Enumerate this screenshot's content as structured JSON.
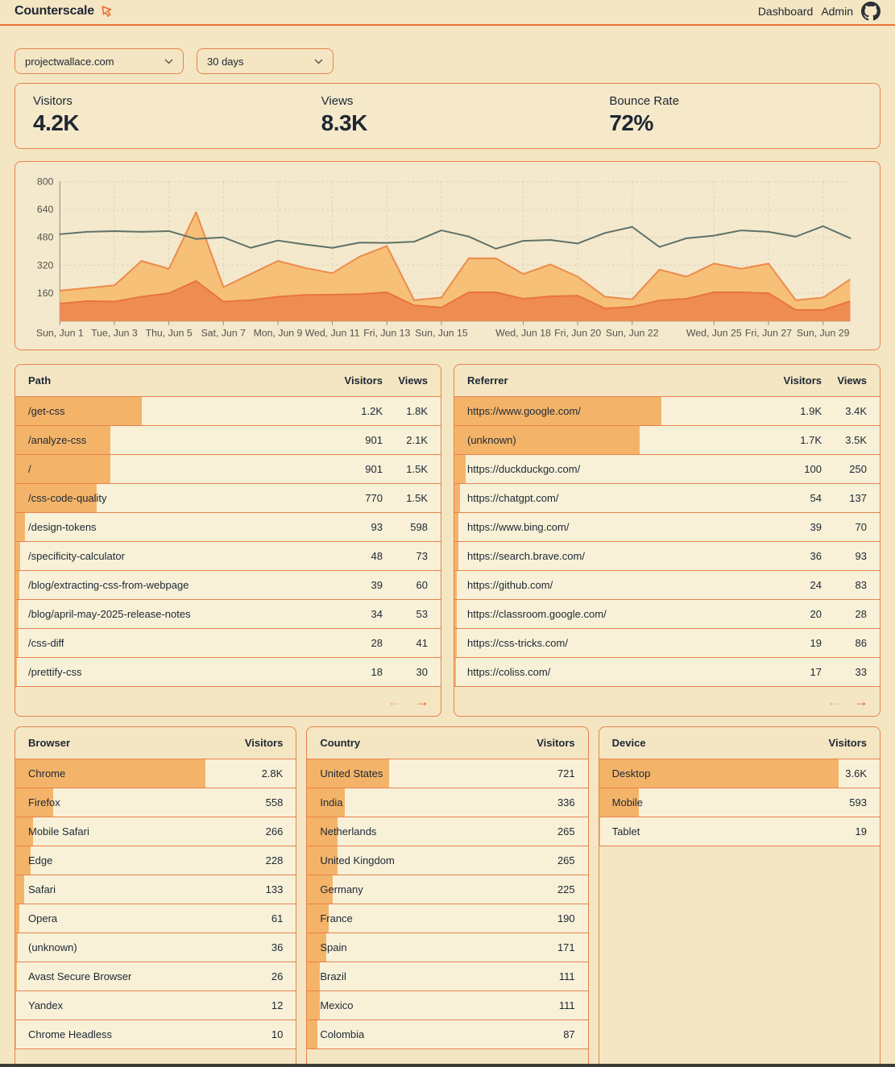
{
  "header": {
    "brand": "Counterscale",
    "nav": [
      "Dashboard",
      "Admin"
    ]
  },
  "filters": {
    "site": "projectwallace.com",
    "range": "30 days"
  },
  "stats": [
    {
      "label": "Visitors",
      "value": "4.2K"
    },
    {
      "label": "Views",
      "value": "8.3K"
    },
    {
      "label": "Bounce Rate",
      "value": "72%"
    }
  ],
  "chart_data": {
    "type": "area",
    "title": "",
    "legend": "none",
    "grid": true,
    "ylim": [
      0,
      800
    ],
    "yticks": [
      160,
      320,
      480,
      640,
      800
    ],
    "x": [
      "Jun 1",
      "Jun 2",
      "Jun 3",
      "Jun 4",
      "Jun 5",
      "Jun 6",
      "Jun 7",
      "Jun 8",
      "Jun 9",
      "Jun 10",
      "Jun 11",
      "Jun 12",
      "Jun 13",
      "Jun 14",
      "Jun 15",
      "Jun 16",
      "Jun 17",
      "Jun 18",
      "Jun 19",
      "Jun 20",
      "Jun 21",
      "Jun 22",
      "Jun 23",
      "Jun 24",
      "Jun 25",
      "Jun 26",
      "Jun 27",
      "Jun 28",
      "Jun 29",
      "Jun 30"
    ],
    "x_ticks": [
      {
        "i": 0,
        "label": "Sun, Jun 1"
      },
      {
        "i": 2,
        "label": "Tue, Jun 3"
      },
      {
        "i": 4,
        "label": "Thu, Jun 5"
      },
      {
        "i": 6,
        "label": "Sat, Jun 7"
      },
      {
        "i": 8,
        "label": "Mon, Jun 9"
      },
      {
        "i": 10,
        "label": "Wed, Jun 11"
      },
      {
        "i": 12,
        "label": "Fri, Jun 13"
      },
      {
        "i": 14,
        "label": "Sun, Jun 15"
      },
      {
        "i": 17,
        "label": "Wed, Jun 18"
      },
      {
        "i": 19,
        "label": "Fri, Jun 20"
      },
      {
        "i": 21,
        "label": "Sun, Jun 22"
      },
      {
        "i": 24,
        "label": "Wed, Jun 25"
      },
      {
        "i": 26,
        "label": "Fri, Jun 27"
      },
      {
        "i": 28,
        "label": "Sun, Jun 29"
      }
    ],
    "series": [
      {
        "name": "views",
        "type": "area",
        "fill": "#f6c078",
        "stroke": "#ed8a4a",
        "values": [
          175,
          190,
          205,
          345,
          300,
          625,
          195,
          270,
          345,
          305,
          275,
          370,
          430,
          120,
          135,
          360,
          360,
          270,
          325,
          255,
          140,
          125,
          295,
          255,
          330,
          300,
          330,
          120,
          135,
          240
        ]
      },
      {
        "name": "visitors",
        "type": "area",
        "fill": "#ee8c53",
        "stroke": "#e8753a",
        "values": [
          100,
          115,
          112,
          140,
          160,
          230,
          112,
          120,
          140,
          150,
          152,
          155,
          165,
          90,
          78,
          165,
          165,
          128,
          142,
          146,
          73,
          82,
          119,
          128,
          165,
          165,
          160,
          64,
          64,
          114
        ]
      },
      {
        "name": "trend",
        "type": "line",
        "stroke": "#5e7168",
        "values": [
          498,
          512,
          516,
          512,
          516,
          471,
          480,
          420,
          462,
          439,
          420,
          450,
          448,
          455,
          520,
          485,
          415,
          460,
          465,
          445,
          505,
          540,
          425,
          475,
          490,
          520,
          512,
          484,
          544,
          475
        ]
      }
    ]
  },
  "tables": {
    "path": {
      "title": "Path",
      "columns": [
        "Visitors",
        "Views"
      ],
      "pager": {
        "prev_enabled": false,
        "next_enabled": true
      },
      "rows": [
        {
          "label": "/get-css",
          "visitors": "1.2K",
          "views": "1.8K",
          "visitors_n": 1200
        },
        {
          "label": "/analyze-css",
          "visitors": "901",
          "views": "2.1K",
          "visitors_n": 901
        },
        {
          "label": "/",
          "visitors": "901",
          "views": "1.5K",
          "visitors_n": 901
        },
        {
          "label": "/css-code-quality",
          "visitors": "770",
          "views": "1.5K",
          "visitors_n": 770
        },
        {
          "label": "/design-tokens",
          "visitors": "93",
          "views": "598",
          "visitors_n": 93
        },
        {
          "label": "/specificity-calculator",
          "visitors": "48",
          "views": "73",
          "visitors_n": 48
        },
        {
          "label": "/blog/extracting-css-from-webpage",
          "visitors": "39",
          "views": "60",
          "visitors_n": 39
        },
        {
          "label": "/blog/april-may-2025-release-notes",
          "visitors": "34",
          "views": "53",
          "visitors_n": 34
        },
        {
          "label": "/css-diff",
          "visitors": "28",
          "views": "41",
          "visitors_n": 28
        },
        {
          "label": "/prettify-css",
          "visitors": "18",
          "views": "30",
          "visitors_n": 18
        }
      ]
    },
    "referrer": {
      "title": "Referrer",
      "columns": [
        "Visitors",
        "Views"
      ],
      "pager": {
        "prev_enabled": false,
        "next_enabled": true
      },
      "rows": [
        {
          "label": "https://www.google.com/",
          "visitors": "1.9K",
          "views": "3.4K",
          "visitors_n": 1900
        },
        {
          "label": "(unknown)",
          "visitors": "1.7K",
          "views": "3.5K",
          "visitors_n": 1700
        },
        {
          "label": "https://duckduckgo.com/",
          "visitors": "100",
          "views": "250",
          "visitors_n": 100
        },
        {
          "label": "https://chatgpt.com/",
          "visitors": "54",
          "views": "137",
          "visitors_n": 54
        },
        {
          "label": "https://www.bing.com/",
          "visitors": "39",
          "views": "70",
          "visitors_n": 39
        },
        {
          "label": "https://search.brave.com/",
          "visitors": "36",
          "views": "93",
          "visitors_n": 36
        },
        {
          "label": "https://github.com/",
          "visitors": "24",
          "views": "83",
          "visitors_n": 24
        },
        {
          "label": "https://classroom.google.com/",
          "visitors": "20",
          "views": "28",
          "visitors_n": 20
        },
        {
          "label": "https://css-tricks.com/",
          "visitors": "19",
          "views": "86",
          "visitors_n": 19
        },
        {
          "label": "https://coliss.com/",
          "visitors": "17",
          "views": "33",
          "visitors_n": 17
        }
      ]
    },
    "browser": {
      "title": "Browser",
      "columns": [
        "Visitors"
      ],
      "pager": {
        "prev_enabled": false,
        "next_enabled": true
      },
      "rows": [
        {
          "label": "Chrome",
          "visitors": "2.8K",
          "visitors_n": 2800
        },
        {
          "label": "Firefox",
          "visitors": "558",
          "visitors_n": 558
        },
        {
          "label": "Mobile Safari",
          "visitors": "266",
          "visitors_n": 266
        },
        {
          "label": "Edge",
          "visitors": "228",
          "visitors_n": 228
        },
        {
          "label": "Safari",
          "visitors": "133",
          "visitors_n": 133
        },
        {
          "label": "Opera",
          "visitors": "61",
          "visitors_n": 61
        },
        {
          "label": "(unknown)",
          "visitors": "36",
          "visitors_n": 36
        },
        {
          "label": "Avast Secure Browser",
          "visitors": "26",
          "visitors_n": 26
        },
        {
          "label": "Yandex",
          "visitors": "12",
          "visitors_n": 12
        },
        {
          "label": "Chrome Headless",
          "visitors": "10",
          "visitors_n": 10
        }
      ]
    },
    "country": {
      "title": "Country",
      "columns": [
        "Visitors"
      ],
      "pager": {
        "prev_enabled": false,
        "next_enabled": true
      },
      "rows": [
        {
          "label": "United States",
          "visitors": "721",
          "visitors_n": 721
        },
        {
          "label": "India",
          "visitors": "336",
          "visitors_n": 336
        },
        {
          "label": "Netherlands",
          "visitors": "265",
          "visitors_n": 265
        },
        {
          "label": "United Kingdom",
          "visitors": "265",
          "visitors_n": 265
        },
        {
          "label": "Germany",
          "visitors": "225",
          "visitors_n": 225
        },
        {
          "label": "France",
          "visitors": "190",
          "visitors_n": 190
        },
        {
          "label": "Spain",
          "visitors": "171",
          "visitors_n": 171
        },
        {
          "label": "Brazil",
          "visitors": "111",
          "visitors_n": 111
        },
        {
          "label": "Mexico",
          "visitors": "111",
          "visitors_n": 111
        },
        {
          "label": "Colombia",
          "visitors": "87",
          "visitors_n": 87
        }
      ]
    },
    "device": {
      "title": "Device",
      "columns": [
        "Visitors"
      ],
      "pager": {
        "prev_enabled": false,
        "next_enabled": false
      },
      "rows": [
        {
          "label": "Desktop",
          "visitors": "3.6K",
          "visitors_n": 3600
        },
        {
          "label": "Mobile",
          "visitors": "593",
          "visitors_n": 593
        },
        {
          "label": "Tablet",
          "visitors": "19",
          "visitors_n": 19
        }
      ]
    }
  },
  "icons": {
    "arrow_left": "←",
    "arrow_right": "→"
  },
  "colors": {
    "accent": "#e8824d",
    "bar": "#f3b46a",
    "area_views": "#f6c078",
    "area_visitors": "#ee8c53",
    "trend_line": "#5e7168",
    "background": "#f4e6c3"
  }
}
